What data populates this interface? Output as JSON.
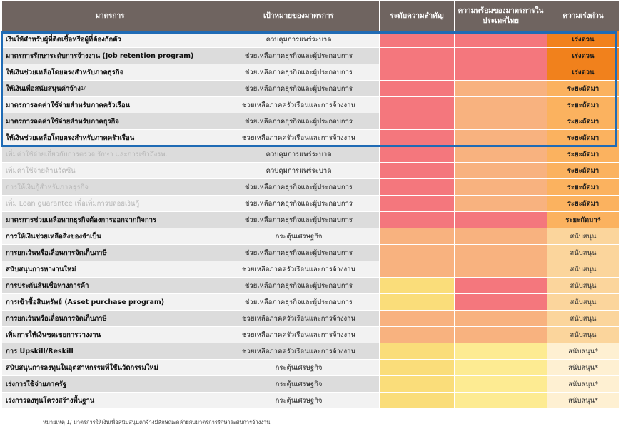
{
  "headers": [
    "มาตรการ",
    "เป้าหมายของมาตรการ",
    "ระดับความสำคัญ",
    "ความพร้อมของมาตรการในประเทศไทย",
    "ความเร่งด่วน"
  ],
  "colors": {
    "header_bg": "#6f6460",
    "high": "#f4777d",
    "medium": "#f8b27f",
    "low": "#fadd7a",
    "very_low": "#fdeb92",
    "urgent": "#f1811c",
    "near_term": "#fbb25f",
    "support": "#fbd59c",
    "support_star": "#fef0d2",
    "highlight_border": "#1f6bb5"
  },
  "rows": [
    {
      "measure": "เงินให้สำหรับผู้ที่ติดเชื้อหรือผู้ที่ต้องกักตัว",
      "goal": "ควบคุมการแพร่ระบาด",
      "importance": "high",
      "readiness": "high",
      "urgency": "เร่งด่วน",
      "urgency_level": "urgent",
      "faded": false
    },
    {
      "measure": "มาตรการรักษาระดับการจ้างงาน (Job retention program)",
      "goal": "ช่วยเหลือภาคธุรกิจและผู้ประกอบการ",
      "importance": "high",
      "readiness": "high",
      "urgency": "เร่งด่วน",
      "urgency_level": "urgent",
      "faded": false
    },
    {
      "measure": "ให้เงินช่วยเหลือโดยตรงสำหรับภาคธุรกิจ",
      "goal": "ช่วยเหลือภาคธุรกิจและผู้ประกอบการ",
      "importance": "high",
      "readiness": "high",
      "urgency": "เร่งด่วน",
      "urgency_level": "urgent",
      "faded": false
    },
    {
      "measure": "ให้เงินเพื่อสนับสนุนค่าจ้าง",
      "measure_note": "1/",
      "goal": "ช่วยเหลือภาคธุรกิจและผู้ประกอบการ",
      "importance": "high",
      "readiness": "medium",
      "urgency": "ระยะถัดมา",
      "urgency_level": "near_term",
      "faded": false
    },
    {
      "measure": "มาตรการลดค่าใช้จ่ายสำหรับภาคครัวเรือน",
      "goal": "ช่วยเหลือภาคครัวเรือนและการจ้างงาน",
      "importance": "high",
      "readiness": "medium",
      "urgency": "ระยะถัดมา",
      "urgency_level": "near_term",
      "faded": false
    },
    {
      "measure": "มาตรการลดค่าใช้จ่ายสำหรับภาคธุรกิจ",
      "goal": "ช่วยเหลือภาคธุรกิจและผู้ประกอบการ",
      "importance": "high",
      "readiness": "medium",
      "urgency": "ระยะถัดมา",
      "urgency_level": "near_term",
      "faded": false
    },
    {
      "measure": "ให้เงินช่วยเหลือโดยตรงสำหรับภาคครัวเรือน",
      "goal": "ช่วยเหลือภาคครัวเรือนและการจ้างงาน",
      "importance": "high",
      "readiness": "medium",
      "urgency": "ระยะถัดมา",
      "urgency_level": "near_term",
      "faded": false
    },
    {
      "measure": "เพิ่มค่าใช้จ่ายเกี่ยวกับการตรวจ รักษา และการเข้าถึงรพ.",
      "goal": "ควบคุมการแพร่ระบาด",
      "importance": "high",
      "readiness": "medium",
      "urgency": "ระยะถัดมา",
      "urgency_level": "near_term",
      "faded": true
    },
    {
      "measure": "เพิ่มค่าใช้จ่ายด้านวัคซีน",
      "goal": "ควบคุมการแพร่ระบาด",
      "importance": "high",
      "readiness": "medium",
      "urgency": "ระยะถัดมา",
      "urgency_level": "near_term",
      "faded": true
    },
    {
      "measure": "การให้เงินกู้สำหรับภาคธุรกิจ",
      "goal": "ช่วยเหลือภาคธุรกิจและผู้ประกอบการ",
      "importance": "high",
      "readiness": "medium",
      "urgency": "ระยะถัดมา",
      "urgency_level": "near_term",
      "faded": true
    },
    {
      "measure": "เพิ่ม Loan guarantee เพื่อเพิ่มการปล่อยเงินกู้",
      "goal": "ช่วยเหลือภาคธุรกิจและผู้ประกอบการ",
      "importance": "high",
      "readiness": "medium",
      "urgency": "ระยะถัดมา",
      "urgency_level": "near_term",
      "faded": true
    },
    {
      "measure": "มาตรการช่วยเหลือหากธุรกิจต้องการออกจากกิจการ",
      "goal": "ช่วยเหลือภาคธุรกิจและผู้ประกอบการ",
      "importance": "high",
      "readiness": "high",
      "urgency": "ระยะถัดมา*",
      "urgency_level": "near_term",
      "faded": false
    },
    {
      "measure": "การให้เงินช่วยเหลือสิ่งของจำเป็น",
      "goal": "กระตุ้นเศรษฐกิจ",
      "importance": "medium",
      "readiness": "medium",
      "urgency": "สนับสนุน",
      "urgency_level": "support",
      "faded": false
    },
    {
      "measure": "การยกเว้นหรือเลื่อนการจัดเก็บภาษี",
      "goal": "ช่วยเหลือภาคธุรกิจและผู้ประกอบการ",
      "importance": "medium",
      "readiness": "medium",
      "urgency": "สนับสนุน",
      "urgency_level": "support",
      "faded": false
    },
    {
      "measure": "สนับสนุนการหางานใหม่",
      "goal": "ช่วยเหลือภาคครัวเรือนและการจ้างงาน",
      "importance": "medium",
      "readiness": "medium",
      "urgency": "สนับสนุน",
      "urgency_level": "support",
      "faded": false
    },
    {
      "measure": "การประกันสินเชื่อทางการค้า",
      "goal": "ช่วยเหลือภาคธุรกิจและผู้ประกอบการ",
      "importance": "low",
      "readiness": "high",
      "urgency": "สนับสนุน",
      "urgency_level": "support",
      "faded": false
    },
    {
      "measure": "การเข้าซื้อสินทรัพย์ (Asset purchase program)",
      "goal": "ช่วยเหลือภาคธุรกิจและผู้ประกอบการ",
      "importance": "low",
      "readiness": "high",
      "urgency": "สนับสนุน",
      "urgency_level": "support",
      "faded": false
    },
    {
      "measure": "การยกเว้นหรือเลื่อนการจัดเก็บภาษี",
      "goal": "ช่วยเหลือภาคครัวเรือนและการจ้างงาน",
      "importance": "medium",
      "readiness": "medium",
      "urgency": "สนับสนุน",
      "urgency_level": "support",
      "faded": false
    },
    {
      "measure": "เพิ่มการให้เงินชดเชยการว่างงาน",
      "goal": "ช่วยเหลือภาคครัวเรือนและการจ้างงาน",
      "importance": "medium",
      "readiness": "medium",
      "urgency": "สนับสนุน",
      "urgency_level": "support",
      "faded": false
    },
    {
      "measure": "การ Upskill/Reskill",
      "goal": "ช่วยเหลือภาคครัวเรือนและการจ้างงาน",
      "importance": "low",
      "readiness": "very_low",
      "urgency": "สนับสนุน*",
      "urgency_level": "support_star",
      "faded": false
    },
    {
      "measure": "สนับสนุนการลงทุนในอุตสาหกรรมที่ใช้นวัตกรรมใหม่",
      "goal": "กระตุ้นเศรษฐกิจ",
      "importance": "low",
      "readiness": "very_low",
      "urgency": "สนับสนุน*",
      "urgency_level": "support_star",
      "faded": false
    },
    {
      "measure": "เร่งการใช้จ่ายภาครัฐ",
      "goal": "กระตุ้นเศรษฐกิจ",
      "importance": "low",
      "readiness": "very_low",
      "urgency": "สนับสนุน*",
      "urgency_level": "support_star",
      "faded": false
    },
    {
      "measure": "เร่งการลงทุนโครงสร้างพื้นฐาน",
      "goal": "กระตุ้นเศรษฐกิจ",
      "importance": "low",
      "readiness": "very_low",
      "urgency": "สนับสนุน*",
      "urgency_level": "support_star",
      "faded": false
    }
  ],
  "footnote": "หมายเหตุ 1/ มาตรการให้เงินเพื่อสนับสนุนค่าจ้างมีลักษณะคล้ายกับมาตรการรักษาระดับการจ้างงาน"
}
